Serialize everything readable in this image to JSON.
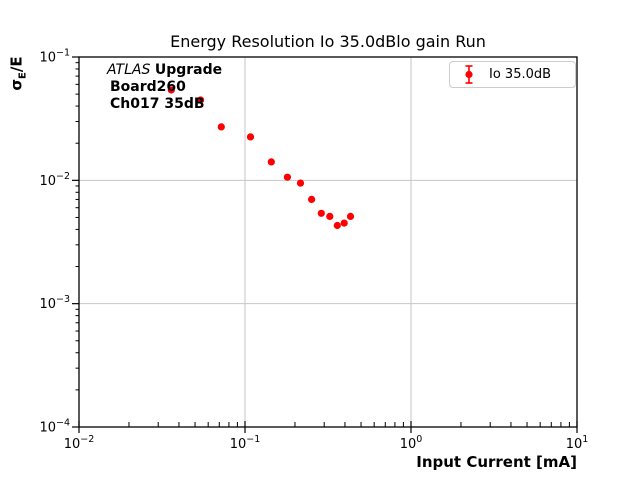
{
  "chart_data": {
    "type": "scatter",
    "title": "Energy Resolution Io 35.0dBlo gain Run",
    "xlabel": "Input Current [mA]",
    "ylabel": "sigma_E/E",
    "ylabel_parts": {
      "main": "σ",
      "sub": "E",
      "rest": "/E"
    },
    "xscale": "log",
    "yscale": "log",
    "xlim": [
      0.01,
      10
    ],
    "ylim": [
      0.0001,
      0.1
    ],
    "x_tick_exponents": [
      -2,
      -1,
      0,
      1
    ],
    "y_tick_exponents": [
      -1,
      -2,
      -3,
      -4
    ],
    "grid": true,
    "grid_color": "#c6c6c6",
    "axis_color": "#000000",
    "legend": {
      "position": "upper right",
      "label": "Io 35.0dB"
    },
    "series": [
      {
        "name": "Io 35.0dB",
        "color": "#ff0000",
        "marker": "point-with-errorbar",
        "x": [
          0.036,
          0.054,
          0.072,
          0.108,
          0.144,
          0.18,
          0.216,
          0.252,
          0.288,
          0.324,
          0.36,
          0.396,
          0.432
        ],
        "y": [
          0.054,
          0.0448,
          0.0271,
          0.0225,
          0.0141,
          0.0106,
          0.0095,
          0.007,
          0.0054,
          0.0051,
          0.0043,
          0.0045,
          0.0051
        ]
      }
    ]
  },
  "annotation": {
    "experiment": "ATLAS",
    "tag": "Upgrade",
    "line2": "Board260",
    "line3": "Ch017 35dB"
  }
}
